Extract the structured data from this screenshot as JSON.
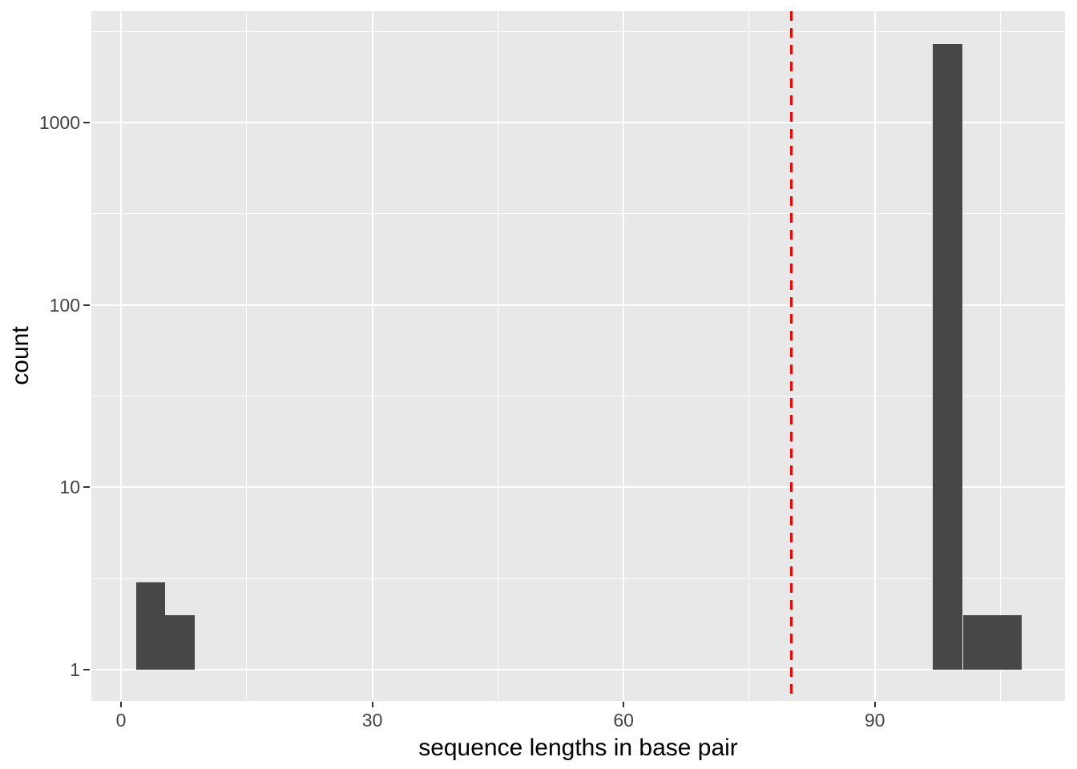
{
  "chart_data": {
    "type": "bar",
    "subtype": "histogram",
    "title": "",
    "xlabel": "sequence lengths in base pair",
    "ylabel": "count",
    "x_scale": "linear",
    "y_scale": "log10",
    "grid": "on",
    "legend": "none",
    "x_ticks": [
      0,
      30,
      60,
      90
    ],
    "x_minor_breaks": [
      15,
      45,
      75,
      105
    ],
    "y_ticks": [
      1,
      10,
      100,
      1000
    ],
    "y_minor_breaks": [
      3.1623,
      31.623,
      316.23,
      3162.3
    ],
    "x_range": [
      -3.54,
      112.7
    ],
    "y_log10_range": [
      -0.171,
      3.61
    ],
    "bar_baseline_count": 1,
    "bars": [
      {
        "x0": 1.8,
        "x1": 5.3,
        "count": 3
      },
      {
        "x0": 5.3,
        "x1": 8.8,
        "count": 2
      },
      {
        "x0": 96.9,
        "x1": 100.5,
        "count": 2700
      },
      {
        "x0": 100.5,
        "x1": 107.5,
        "count": 2
      }
    ],
    "vline": {
      "x": 80,
      "style": "dashed",
      "color": "#FF0000"
    },
    "colors": {
      "panel_bg": "#E8E8E8",
      "grid_major": "#FFFFFF",
      "grid_minor": "#FFFFFF",
      "bar_fill": "#474747",
      "tick_label": "#444444",
      "axis_title": "#000000",
      "tick_mark": "#333333",
      "outer_bg": "#FFFFFF"
    }
  }
}
